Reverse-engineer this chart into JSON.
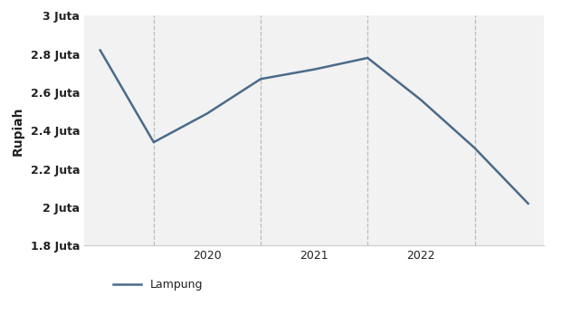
{
  "x": [
    2019.0,
    2019.5,
    2020.0,
    2020.5,
    2021.0,
    2021.5,
    2022.0,
    2022.5,
    2023.0
  ],
  "y": [
    2820000,
    2340000,
    2490000,
    2670000,
    2720000,
    2780000,
    2560000,
    2310000,
    2020000
  ],
  "line_color": "#4a6b8a",
  "line_width": 1.8,
  "ylabel": "Rupiah",
  "ylim": [
    1800000,
    3000000
  ],
  "yticks": [
    1800000,
    2000000,
    2200000,
    2400000,
    2600000,
    2800000,
    3000000
  ],
  "ytick_labels": [
    "1.8 Juta",
    "2 Juta",
    "2.2 Juta",
    "2.4 Juta",
    "2.6 Juta",
    "2.8 Juta",
    "3 Juta"
  ],
  "xlim": [
    2018.85,
    2023.15
  ],
  "xticks": [
    2020,
    2021,
    2022
  ],
  "xtick_labels": [
    "2020",
    "2021",
    "2022"
  ],
  "vlines": [
    2019.5,
    2020.5,
    2021.5,
    2022.5
  ],
  "plot_bg_color": "#f2f2f2",
  "outer_bg_color": "#ffffff",
  "legend_label": "Lampung",
  "vline_color": "#bbbbbb",
  "vline_style": "--",
  "bottom_line_color": "#cccccc"
}
